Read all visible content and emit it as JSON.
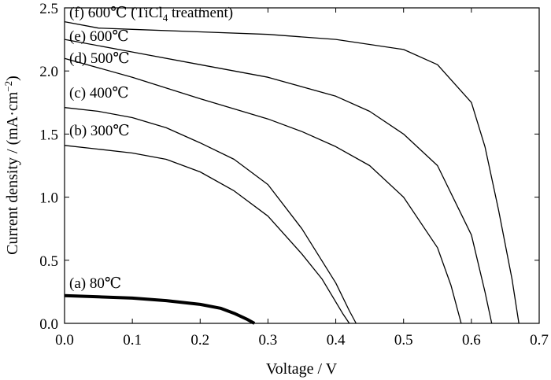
{
  "chart_data": {
    "type": "line",
    "xlabel": "Voltage / V",
    "ylabel": "Current density / (mA·cm",
    "ylabel_sup": "−2",
    "ylabel_end": ")",
    "xlim": [
      0.0,
      0.7
    ],
    "ylim": [
      0.0,
      2.5
    ],
    "xticks": [
      "0.0",
      "0.1",
      "0.2",
      "0.3",
      "0.4",
      "0.5",
      "0.6",
      "0.7"
    ],
    "yticks": [
      "0.0",
      "0.5",
      "1.0",
      "1.5",
      "2.0",
      "2.5"
    ],
    "legend": "curve labels placed at the upper-left end of each curve",
    "series": [
      {
        "name": "(a) 80℃",
        "x": [
          0.0,
          0.05,
          0.1,
          0.15,
          0.2,
          0.23,
          0.25,
          0.27,
          0.28
        ],
        "y": [
          0.22,
          0.21,
          0.2,
          0.18,
          0.15,
          0.12,
          0.08,
          0.03,
          0.0
        ]
      },
      {
        "name": "(b) 300℃",
        "x": [
          0.0,
          0.05,
          0.1,
          0.15,
          0.2,
          0.25,
          0.3,
          0.35,
          0.38,
          0.41,
          0.42
        ],
        "y": [
          1.41,
          1.38,
          1.35,
          1.3,
          1.2,
          1.05,
          0.85,
          0.55,
          0.35,
          0.08,
          0.0
        ]
      },
      {
        "name": "(c) 400℃",
        "x": [
          0.0,
          0.05,
          0.1,
          0.15,
          0.2,
          0.25,
          0.3,
          0.35,
          0.4,
          0.42,
          0.43
        ],
        "y": [
          1.71,
          1.68,
          1.63,
          1.55,
          1.43,
          1.3,
          1.1,
          0.75,
          0.32,
          0.1,
          0.0
        ]
      },
      {
        "name": "(d) 500℃",
        "x": [
          0.0,
          0.1,
          0.2,
          0.3,
          0.35,
          0.4,
          0.45,
          0.5,
          0.55,
          0.57,
          0.585
        ],
        "y": [
          2.1,
          1.95,
          1.78,
          1.62,
          1.52,
          1.4,
          1.25,
          1.0,
          0.6,
          0.3,
          0.0
        ]
      },
      {
        "name": "(e) 600℃",
        "x": [
          0.0,
          0.1,
          0.2,
          0.3,
          0.4,
          0.45,
          0.5,
          0.55,
          0.6,
          0.62,
          0.63
        ],
        "y": [
          2.25,
          2.15,
          2.05,
          1.95,
          1.8,
          1.68,
          1.5,
          1.25,
          0.7,
          0.25,
          0.0
        ]
      },
      {
        "name": "(f) 600℃  (TiCl4 treatment)",
        "x": [
          0.0,
          0.05,
          0.1,
          0.2,
          0.3,
          0.4,
          0.5,
          0.55,
          0.6,
          0.62,
          0.64,
          0.66,
          0.67
        ],
        "y": [
          2.39,
          2.34,
          2.33,
          2.31,
          2.29,
          2.25,
          2.17,
          2.05,
          1.75,
          1.4,
          0.9,
          0.35,
          0.0
        ]
      }
    ],
    "label_parts": [
      {
        "pre": "(a) 80℃",
        "sub": "",
        "post": ""
      },
      {
        "pre": "(b) 300℃",
        "sub": "",
        "post": ""
      },
      {
        "pre": "(c) 400℃",
        "sub": "",
        "post": ""
      },
      {
        "pre": "(d) 500℃",
        "sub": "",
        "post": ""
      },
      {
        "pre": "(e) 600℃",
        "sub": "",
        "post": ""
      },
      {
        "pre": "(f) 600℃  (TiCl",
        "sub": "4",
        "post": " treatment)"
      }
    ],
    "line_color": "#000000"
  }
}
